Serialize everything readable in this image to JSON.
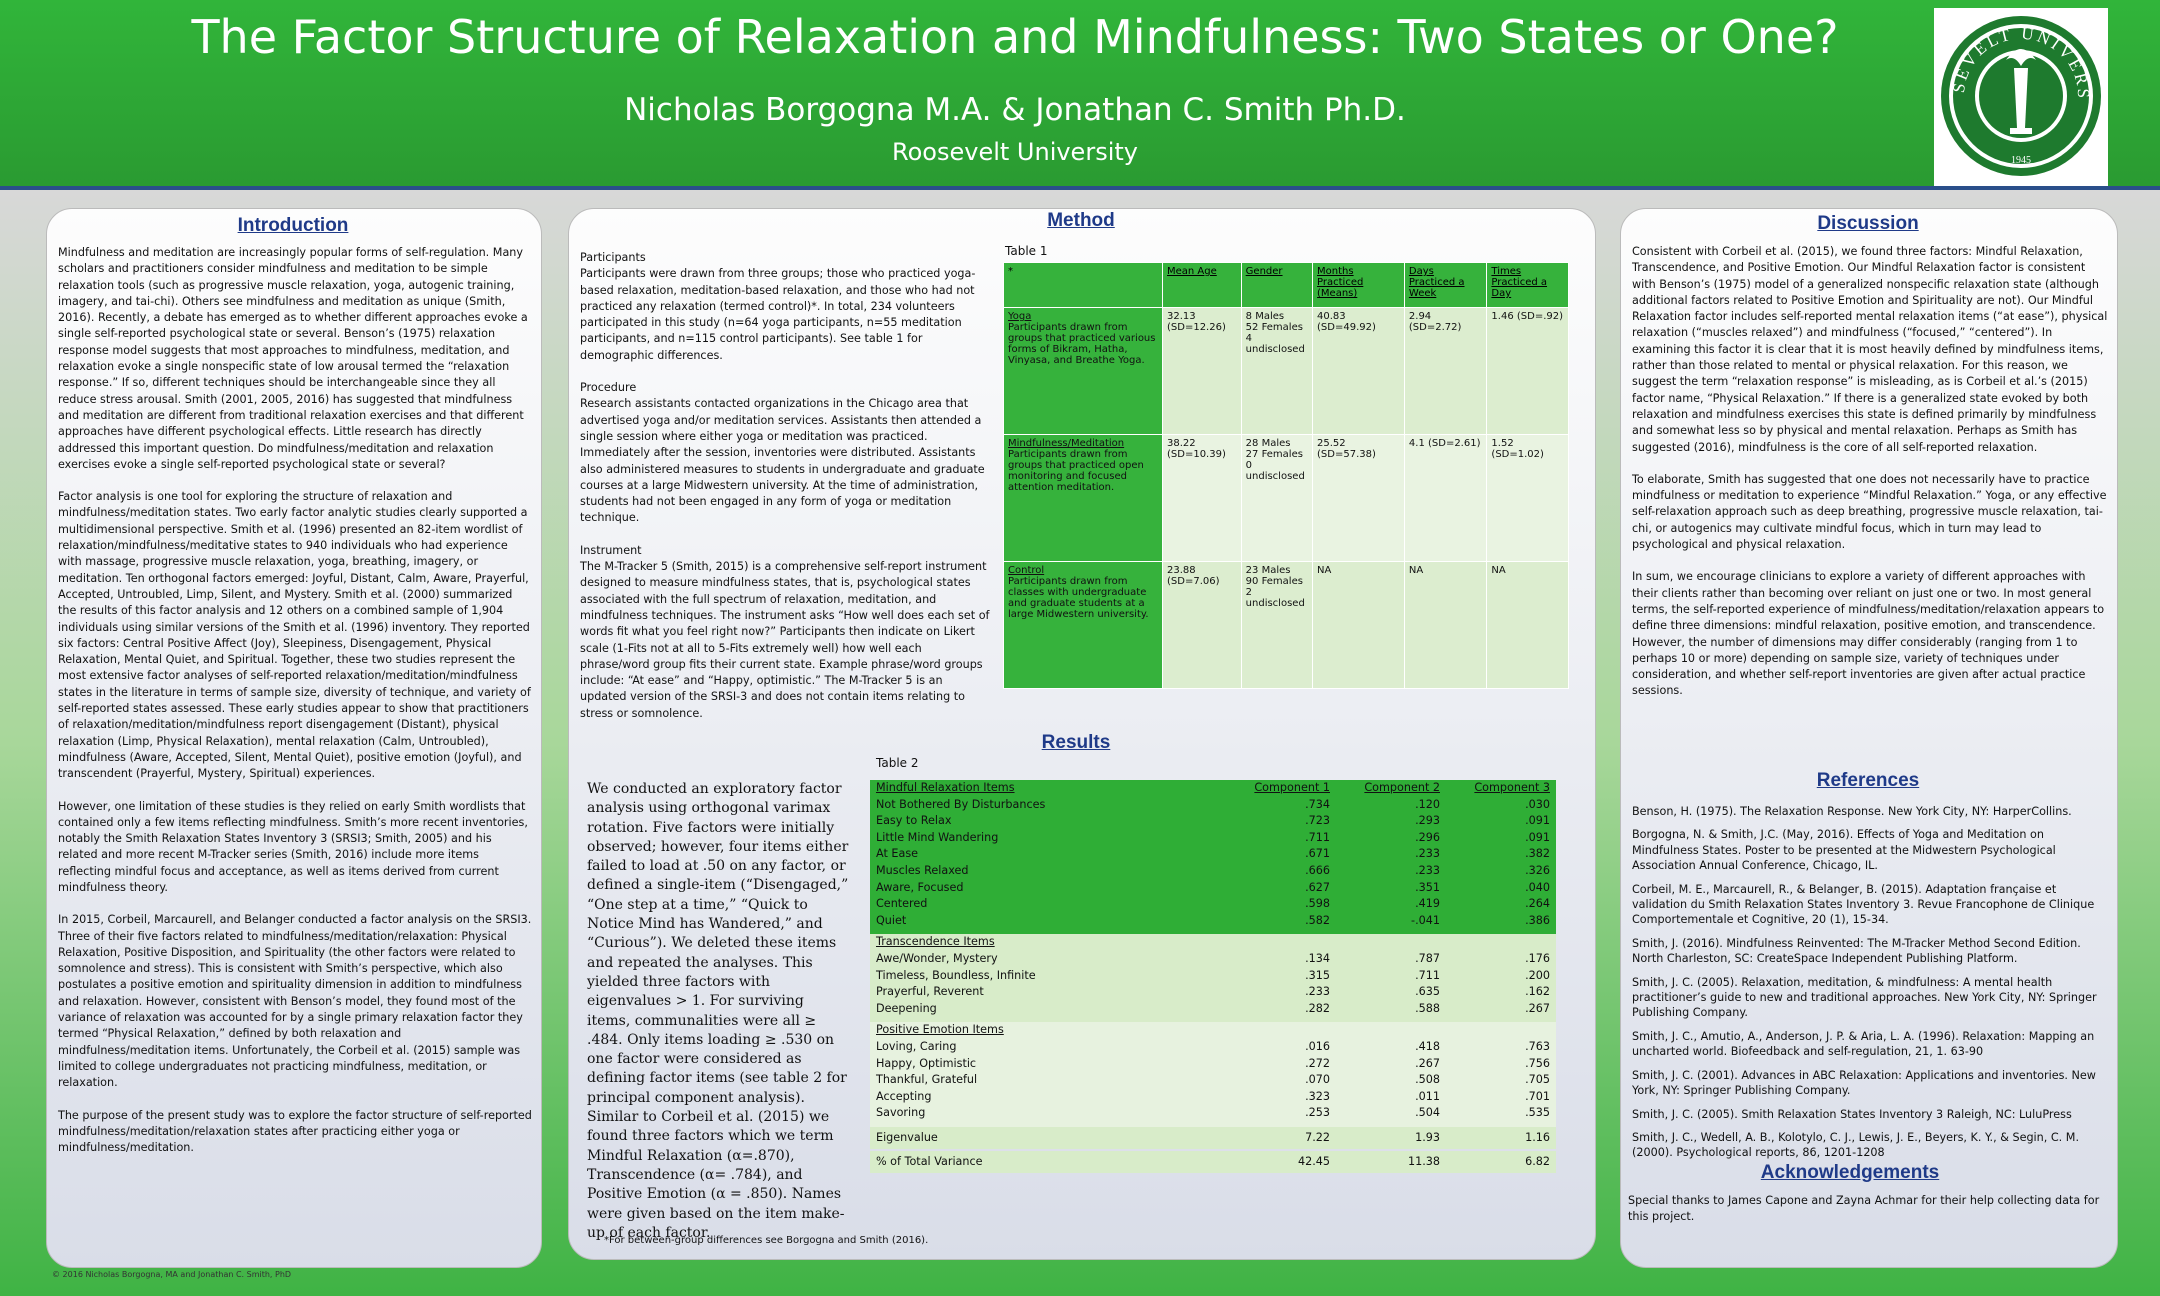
{
  "header": {
    "title": "The Factor Structure of Relaxation and Mindfulness: Two States or One?",
    "authors": "Nicholas Borgogna M.A. & Jonathan C. Smith Ph.D.",
    "affiliation": "Roosevelt University",
    "logo_text": "ROOSEVELT UNIVERSITY",
    "logo_year": "1945",
    "brand_green": "#2ea436",
    "accent_blue": "#1f3a88"
  },
  "introduction": {
    "title": "Introduction",
    "paragraphs": [
      "Mindfulness and meditation are increasingly popular forms of self-regulation. Many scholars and practitioners consider mindfulness and meditation to be simple relaxation tools (such as progressive muscle relaxation, yoga, autogenic training, imagery, and tai-chi). Others see mindfulness and meditation as unique (Smith, 2016). Recently, a debate has emerged as to whether different approaches evoke a single self-reported psychological state or several. Benson’s (1975) relaxation response model suggests that most approaches to mindfulness, meditation, and relaxation evoke a single nonspecific state of low arousal termed the “relaxation response.” If so, different techniques should be interchangeable since they all reduce stress arousal. Smith (2001, 2005, 2016) has suggested that mindfulness and meditation are different from traditional relaxation exercises and that different approaches have different psychological effects. Little research has directly addressed this important question. Do mindfulness/meditation and relaxation exercises evoke a single self-reported psychological state or several?",
      "Factor analysis is one tool for exploring the structure of relaxation and mindfulness/meditation states. Two early factor analytic studies clearly supported a multidimensional perspective. Smith et al. (1996) presented an 82-item wordlist of relaxation/mindfulness/meditative states to 940 individuals who had experience with massage, progressive muscle relaxation, yoga, breathing, imagery, or meditation. Ten orthogonal factors emerged: Joyful, Distant, Calm, Aware, Prayerful, Accepted, Untroubled, Limp, Silent, and Mystery. Smith et al. (2000) summarized the results of this factor analysis and 12 others on a combined sample of 1,904 individuals using similar versions of the Smith et al. (1996) inventory. They reported six factors: Central Positive Affect (Joy), Sleepiness, Disengagement, Physical Relaxation, Mental Quiet, and Spiritual. Together, these two studies represent the most extensive factor analyses of self-reported relaxation/meditation/mindfulness states in the literature in terms of sample size, diversity of technique, and variety of self-reported states assessed. These early studies appear to show that practitioners of relaxation/meditation/mindfulness report disengagement (Distant), physical relaxation (Limp, Physical Relaxation), mental relaxation (Calm, Untroubled), mindfulness (Aware, Accepted, Silent, Mental Quiet), positive emotion (Joyful), and transcendent (Prayerful, Mystery, Spiritual) experiences.",
      "However, one limitation of these studies is they relied on early Smith wordlists that contained only a few items reflecting mindfulness. Smith’s more recent inventories, notably the Smith Relaxation States Inventory 3 (SRSI3; Smith, 2005) and his related and more recent M-Tracker series (Smith, 2016) include more items reflecting mindful focus and acceptance, as well as items derived from current mindfulness theory.",
      "In 2015, Corbeil, Marcaurell, and Belanger conducted a factor analysis on the SRSI3. Three of their five factors related to mindfulness/meditation/relaxation: Physical Relaxation, Positive Disposition, and Spirituality (the other factors were related to somnolence and stress). This is consistent with Smith’s perspective, which also postulates a positive emotion and spirituality dimension in addition to mindfulness and relaxation. However, consistent with Benson’s model, they found most of the variance of relaxation was accounted for by a single primary relaxation factor they termed “Physical Relaxation,” defined by both relaxation and mindfulness/meditation items. Unfortunately, the Corbeil et al. (2015) sample was limited to college undergraduates not practicing mindfulness, meditation, or relaxation.",
      "The purpose of the present study was to explore the factor structure of self-reported mindfulness/meditation/relaxation states after practicing either yoga or mindfulness/meditation."
    ]
  },
  "method": {
    "title": "Method",
    "participants_heading": "Participants",
    "participants_text": "Participants were drawn from three groups; those who practiced yoga-based relaxation, meditation-based relaxation, and those who had not practiced any relaxation (termed control)*. In total, 234 volunteers participated in this study (n=64 yoga participants, n=55 meditation participants, and n=115 control participants). See table 1 for demographic differences.",
    "procedure_heading": "Procedure",
    "procedure_text": "Research assistants contacted organizations in the Chicago area that advertised yoga and/or meditation services. Assistants then attended a single session where either yoga or meditation was practiced. Immediately after the session, inventories were distributed. Assistants also administered measures to students in undergraduate and graduate courses at a large Midwestern university. At the time of administration, students had not been engaged in any form of yoga or meditation technique.",
    "instrument_heading": "Instrument",
    "instrument_text": "The M-Tracker 5 (Smith, 2015) is a comprehensive self-report instrument designed to measure mindfulness states, that is, psychological states associated with the full spectrum of relaxation, meditation, and mindfulness techniques. The instrument asks “How well does each set of words fit what you feel right now?” Participants then indicate on Likert scale (1-Fits not at all to 5-Fits extremely well) how well each phrase/word group fits their current state. Example phrase/word groups include: “At ease” and “Happy, optimistic.” The M-Tracker 5 is an updated version of the SRSI-3 and does not contain items relating to stress or somnolence.",
    "footnote": "*For between-group differences see Borgogna and Smith (2016)."
  },
  "table1": {
    "caption": "Table 1",
    "corner": "*",
    "headers": [
      "Mean Age",
      "Gender",
      "Months Practiced (Means)",
      "Days Practiced a Week",
      "Times Practiced a Day"
    ],
    "rows": [
      {
        "label": "Yoga",
        "desc": "Participants drawn from groups that practiced various forms of Bikram, Hatha, Vinyasa, and Breathe Yoga.",
        "age": "32.13 (SD=12.26)",
        "gender": "8 Males\n52 Females\n4 undisclosed",
        "months": "40.83 (SD=49.92)",
        "days": "2.94 (SD=2.72)",
        "times": "1.46 (SD=.92)"
      },
      {
        "label": "Mindfulness/Meditation",
        "desc": "Participants drawn from groups that practiced open monitoring and focused attention meditation.",
        "age": "38.22 (SD=10.39)",
        "gender": "28 Males\n27 Females\n0 undisclosed",
        "months": "25.52 (SD=57.38)",
        "days": "4.1 (SD=2.61)",
        "times": "1.52 (SD=1.02)"
      },
      {
        "label": "Control",
        "desc": "Participants drawn from classes with undergraduate and graduate students at a large Midwestern university.",
        "age": "23.88 (SD=7.06)",
        "gender": "23 Males\n90 Females\n2 undisclosed",
        "months": "NA",
        "days": "NA",
        "times": "NA"
      }
    ]
  },
  "results": {
    "title": "Results",
    "text": "We conducted an exploratory factor analysis using orthogonal varimax rotation. Five factors were initially observed; however, four items either failed to load at .50 on any factor, or defined a single-item (“Disengaged,” “One step at a time,” “Quick to Notice Mind has Wandered,” and “Curious”). We deleted these items and repeated the analyses. This yielded three factors with eigenvalues > 1. For surviving items, communalities were all ≥ .484. Only items loading ≥ .530 on one factor were considered as defining factor items (see table 2 for principal component analysis). Similar to Corbeil et al. (2015) we found three factors which we term Mindful Relaxation (α=.870), Transcendence (α= .784), and Positive Emotion (α = .850). Names were given based on the item make-up of each factor."
  },
  "table2": {
    "caption": "Table 2",
    "col_headers": [
      "Component 1",
      "Component 2",
      "Component 3"
    ],
    "groups": [
      {
        "title": "Mindful Relaxation Items",
        "items": [
          {
            "name": "Not Bothered By Disturbances",
            "v": [
              ".734",
              ".120",
              ".030"
            ]
          },
          {
            "name": "Easy to Relax",
            "v": [
              ".723",
              ".293",
              ".091"
            ]
          },
          {
            "name": "Little Mind Wandering",
            "v": [
              ".711",
              ".296",
              ".091"
            ]
          },
          {
            "name": "At Ease",
            "v": [
              ".671",
              ".233",
              ".382"
            ]
          },
          {
            "name": "Muscles Relaxed",
            "v": [
              ".666",
              ".233",
              ".326"
            ]
          },
          {
            "name": "Aware, Focused",
            "v": [
              ".627",
              ".351",
              ".040"
            ]
          },
          {
            "name": "Centered",
            "v": [
              ".598",
              ".419",
              ".264"
            ]
          },
          {
            "name": "Quiet",
            "v": [
              ".582",
              "-.041",
              ".386"
            ]
          }
        ]
      },
      {
        "title": "Transcendence Items",
        "items": [
          {
            "name": "Awe/Wonder, Mystery",
            "v": [
              ".134",
              ".787",
              ".176"
            ]
          },
          {
            "name": "Timeless, Boundless, Infinite",
            "v": [
              ".315",
              ".711",
              ".200"
            ]
          },
          {
            "name": "Prayerful, Reverent",
            "v": [
              ".233",
              ".635",
              ".162"
            ]
          },
          {
            "name": "Deepening",
            "v": [
              ".282",
              ".588",
              ".267"
            ]
          }
        ]
      },
      {
        "title": "Positive Emotion Items",
        "items": [
          {
            "name": "Loving, Caring",
            "v": [
              ".016",
              ".418",
              ".763"
            ]
          },
          {
            "name": "Happy, Optimistic",
            "v": [
              ".272",
              ".267",
              ".756"
            ]
          },
          {
            "name": "Thankful, Grateful",
            "v": [
              ".070",
              ".508",
              ".705"
            ]
          },
          {
            "name": "Accepting",
            "v": [
              ".323",
              ".011",
              ".701"
            ]
          },
          {
            "name": "Savoring",
            "v": [
              ".253",
              ".504",
              ".535"
            ]
          }
        ]
      }
    ],
    "eigen_label": "Eigenvalue",
    "eigen": [
      "7.22",
      "1.93",
      "1.16"
    ],
    "var_label": "% of Total Variance",
    "variance": [
      "42.45",
      "11.38",
      "6.82"
    ]
  },
  "discussion": {
    "title": "Discussion",
    "paragraphs": [
      "Consistent with Corbeil et al. (2015), we found three factors: Mindful Relaxation, Transcendence, and Positive Emotion. Our Mindful Relaxation factor is consistent with Benson’s (1975) model of a generalized nonspecific relaxation state (although additional factors related to Positive Emotion and Spirituality are not). Our Mindful Relaxation factor includes self-reported mental relaxation items (“at ease”), physical relaxation (“muscles relaxed”) and mindfulness (“focused,” “centered”). In examining this factor it is clear that it is most heavily defined by mindfulness items, rather than those related to mental or physical relaxation. For this reason, we suggest the term “relaxation response” is misleading, as is Corbeil et al.’s (2015) factor name, “Physical Relaxation.” If there is a generalized state evoked by both relaxation and mindfulness exercises this state is defined primarily by mindfulness and somewhat less so by physical and mental relaxation. Perhaps as Smith has suggested (2016), mindfulness is the core of all self-reported relaxation.",
      "To elaborate, Smith has suggested that one does not necessarily have to practice mindfulness or meditation to experience “Mindful Relaxation.” Yoga, or any effective self-relaxation approach such as deep breathing, progressive muscle relaxation, tai-chi, or autogenics may cultivate mindful focus, which in turn may lead to psychological and physical relaxation.",
      "In sum, we encourage clinicians to explore a variety of different approaches with their clients rather than becoming over reliant on just one or two. In most general terms, the self-reported experience of mindfulness/meditation/relaxation appears to define three dimensions: mindful relaxation, positive emotion, and transcendence. However, the number of dimensions may differ considerably (ranging from 1 to perhaps 10 or more) depending on sample size, variety of techniques under consideration, and whether self-report inventories are given after actual practice sessions."
    ]
  },
  "references": {
    "title": "References",
    "items": [
      "Benson, H. (1975). The Relaxation Response. New York City, NY: HarperCollins.",
      "Borgogna, N. & Smith, J.C. (May, 2016). Effects of Yoga and Meditation on Mindfulness States. Poster to be presented at the Midwestern Psychological Association Annual Conference, Chicago, IL.",
      "Corbeil, M. E., Marcaurell, R., & Belanger, B. (2015). Adaptation française et validation du Smith Relaxation States Inventory 3. Revue Francophone de Clinique Comportementale et Cognitive, 20 (1), 15-34.",
      "Smith, J. (2016). Mindfulness Reinvented: The M-Tracker Method Second Edition. North Charleston, SC: CreateSpace Independent Publishing Platform.",
      "Smith, J. C. (2005). Relaxation, meditation, & mindfulness: A mental health practitioner’s guide to new and traditional approaches. New York City, NY: Springer Publishing Company.",
      "Smith, J. C., Amutio, A., Anderson, J. P. & Aria, L. A. (1996). Relaxation: Mapping an uncharted world. Biofeedback and self-regulation, 21, 1. 63-90",
      "Smith, J. C. (2001). Advances in ABC Relaxation: Applications and inventories. New York, NY: Springer Publishing Company.",
      "Smith, J. C. (2005). Smith Relaxation States Inventory 3 Raleigh, NC: LuluPress",
      "Smith, J. C., Wedell, A. B., Kolotylo, C. J., Lewis, J. E., Beyers, K. Y., & Segin, C. M. (2000). Psychological reports, 86, 1201-1208"
    ]
  },
  "acknowledgements": {
    "title": "Acknowledgements",
    "text": "Special thanks to James Capone and Zayna Achmar for their help collecting data for this project."
  },
  "footer": {
    "text": "© 2016 Nicholas Borgogna, MA and Jonathan C. Smith, PhD"
  }
}
